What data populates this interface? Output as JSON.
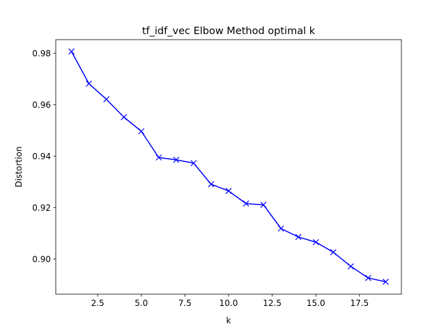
{
  "chart_data": {
    "type": "line",
    "title": "tf_idf_vec Elbow Method optimal k",
    "xlabel": "k",
    "ylabel": "Distortion",
    "xlim": [
      0.1,
      19.9
    ],
    "ylim": [
      0.8864,
      0.9853
    ],
    "xticks": [
      2.5,
      5.0,
      7.5,
      10.0,
      12.5,
      15.0,
      17.5
    ],
    "xtick_labels": [
      "2.5",
      "5.0",
      "7.5",
      "10.0",
      "12.5",
      "15.0",
      "17.5"
    ],
    "yticks": [
      0.9,
      0.92,
      0.94,
      0.96,
      0.98
    ],
    "ytick_labels": [
      "0.90",
      "0.92",
      "0.94",
      "0.96",
      "0.98"
    ],
    "grid": false,
    "marker": "x",
    "color": "#0000ff",
    "series": [
      {
        "x": [
          1,
          2,
          3,
          4,
          5,
          6,
          7,
          8,
          9,
          10,
          11,
          12,
          13,
          14,
          15,
          16,
          17,
          18,
          19
        ],
        "values": [
          0.9807,
          0.9682,
          0.9621,
          0.9552,
          0.9497,
          0.9395,
          0.9386,
          0.9373,
          0.9291,
          0.9265,
          0.9216,
          0.9211,
          0.9119,
          0.9086,
          0.9066,
          0.9027,
          0.8972,
          0.8927,
          0.8912
        ]
      }
    ]
  }
}
